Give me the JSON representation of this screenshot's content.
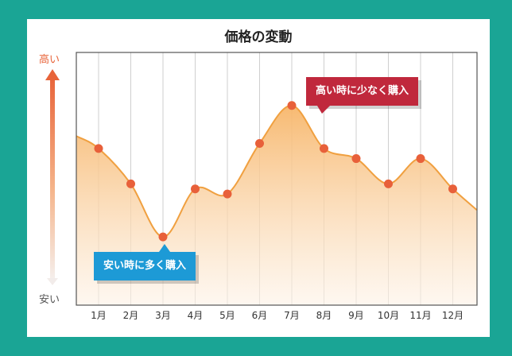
{
  "chart_data": {
    "type": "area",
    "title": "価格の変動",
    "categories": [
      "1月",
      "2月",
      "3月",
      "4月",
      "5月",
      "6月",
      "7月",
      "8月",
      "9月",
      "10月",
      "11月",
      "12月"
    ],
    "values": [
      62,
      48,
      27,
      46,
      44,
      64,
      79,
      62,
      58,
      48,
      58,
      46
    ],
    "ylim": [
      0,
      100
    ],
    "y_axis_labels": {
      "high": "高い",
      "low": "安い"
    },
    "grid": "vertical",
    "annotations": [
      {
        "category": "7月",
        "text": "高い時に少なく購入"
      },
      {
        "category": "3月",
        "text": "安い時に多く購入"
      }
    ],
    "colors": {
      "line": "#f0a040",
      "point": "#e8603a",
      "fill_top": "#f7b66a",
      "fill_bottom": "#fdf2e6",
      "high_callout": "#c0283c",
      "low_callout": "#1d9ad6",
      "axis_high": "#e8643a"
    }
  }
}
